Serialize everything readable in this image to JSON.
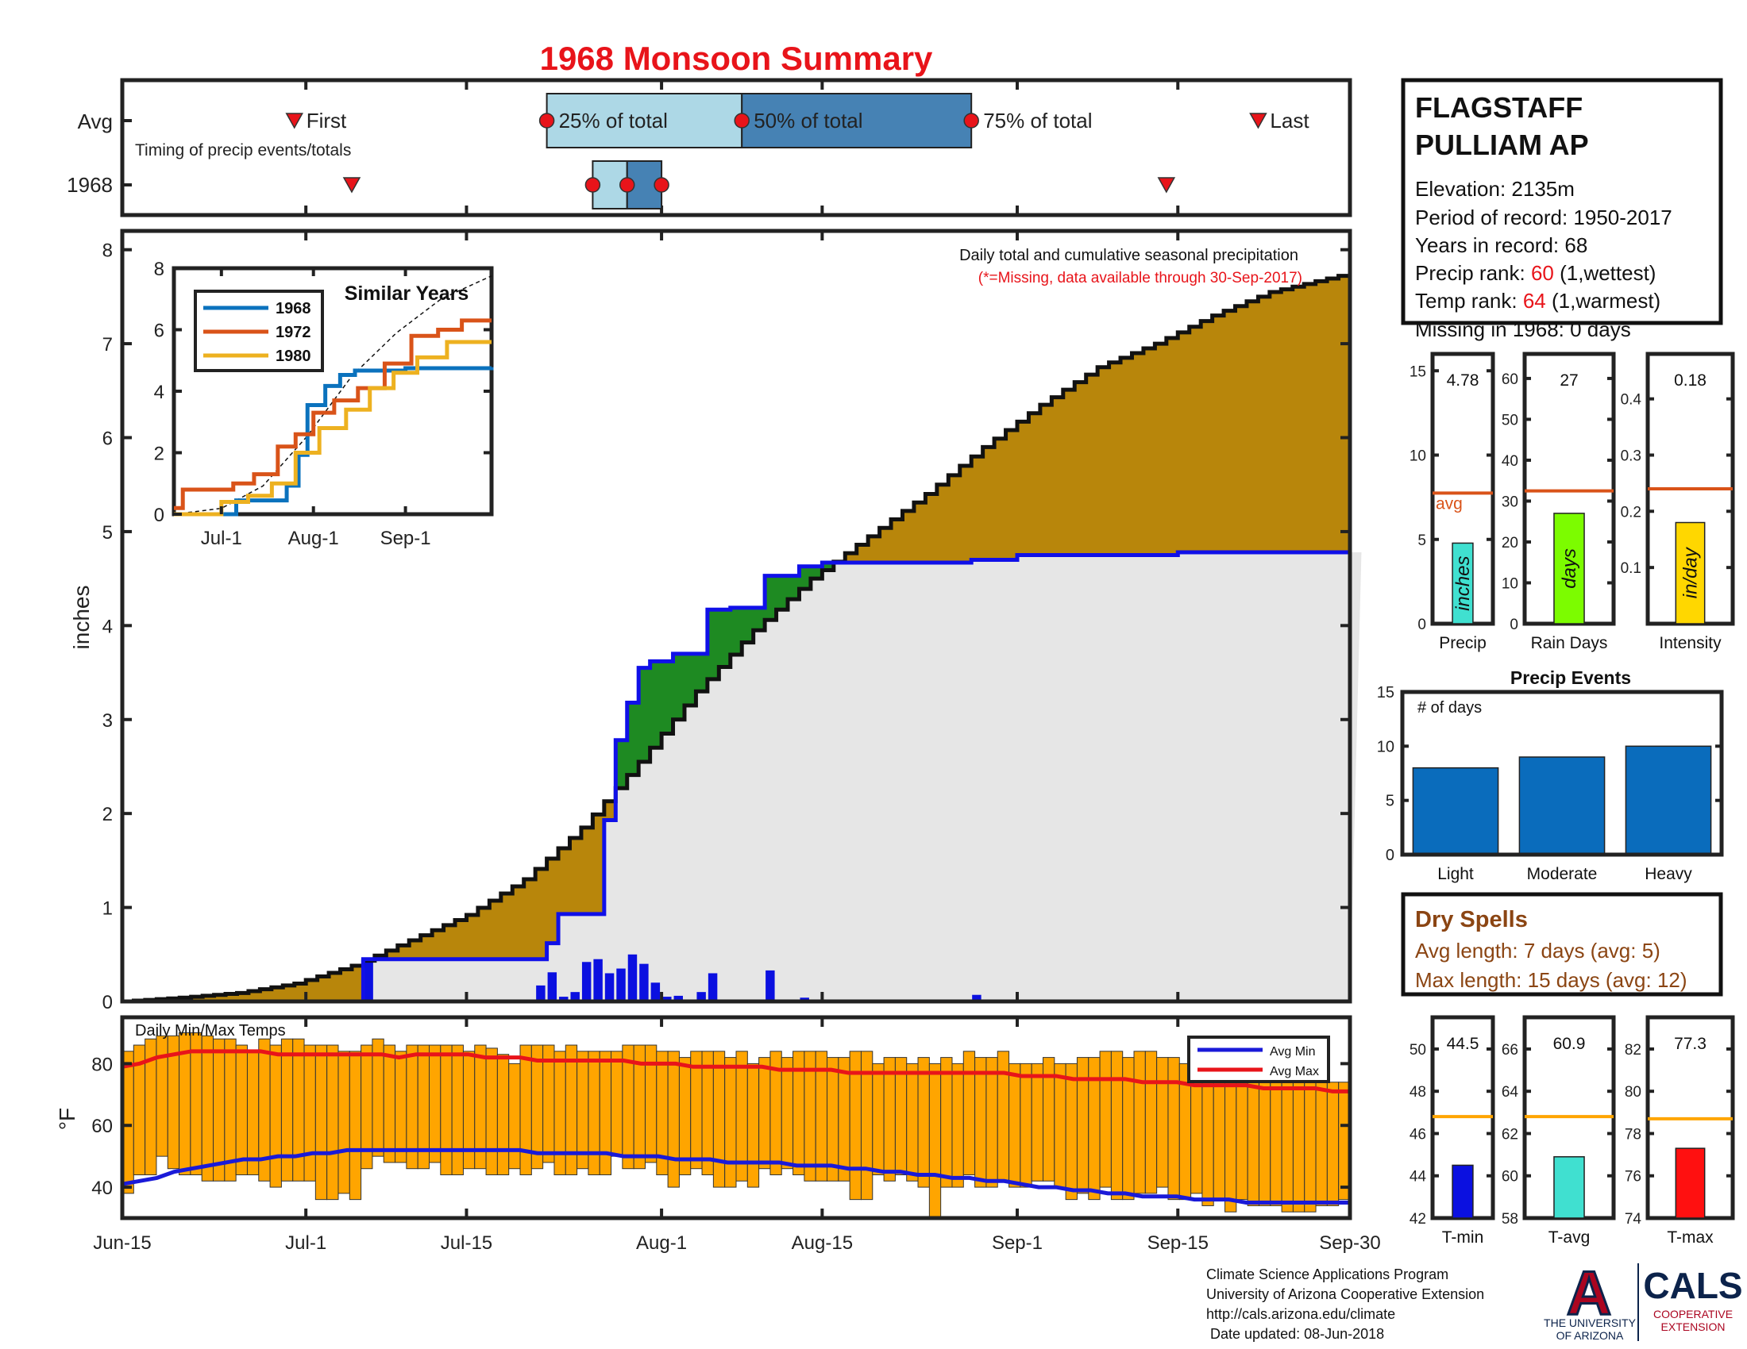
{
  "title": "1968 Monsoon Summary",
  "station": {
    "name_line1": "FLAGSTAFF",
    "name_line2": "PULLIAM AP",
    "elevation": "Elevation: 2135m",
    "period": "Period of record: 1950-2017",
    "years": "Years in record: 68",
    "precip_rank_prefix": "Precip rank: ",
    "precip_rank_value": "60",
    "precip_rank_suffix": " (1,wettest)",
    "temp_rank_prefix": "Temp rank: ",
    "temp_rank_value": "64",
    "temp_rank_suffix": " (1,warmest)",
    "missing": "Missing in 1968: 0 days"
  },
  "colors": {
    "title": "#e8141a",
    "rank_value": "#e8141a",
    "cumulative_fill": "#b8860b",
    "avg_fill": "#e6e6e6",
    "above_avg_fill": "#1e8a22",
    "daily_bar": "#0b10e0",
    "avg_line": "#1010e8",
    "temp_bar": "#ffa500",
    "max_line": "#e8141a",
    "min_line": "#1a1ad8",
    "dry_spell": "#8b4513",
    "events_bar": "#0a6cbc"
  },
  "timing": {
    "row_labels": [
      "Avg",
      "1968"
    ],
    "caption": "Timing of precip events/totals",
    "labels": {
      "first": "First",
      "p25": "25% of total",
      "p50": "50% of total",
      "p75": "75% of total",
      "last": "Last"
    },
    "avg": {
      "first": "2018-06-30",
      "p25": "2018-07-22",
      "p50": "2018-08-08",
      "p75": "2018-08-28",
      "last": "2018-09-22"
    },
    "year": {
      "first": "2018-07-05",
      "p25": "2018-07-26",
      "p50": "2018-07-29",
      "p75": "2018-08-01",
      "last": "2018-09-14"
    }
  },
  "chart_data": [
    {
      "type": "area",
      "name": "main-precipitation",
      "annotation": "Daily total and cumulative seasonal precipitation",
      "missing_note": "(*=Missing, data available through 30-Sep-2017)",
      "ylabel": "inches",
      "ylim": [
        0,
        8.2
      ],
      "yticks": [
        0,
        1,
        2,
        3,
        4,
        5,
        6,
        7,
        8
      ],
      "x_ticks": [
        {
          "date": "2018-06-15",
          "label": "Jun-15"
        },
        {
          "date": "2018-07-01",
          "label": "Jul-1"
        },
        {
          "date": "2018-07-15",
          "label": "Jul-15"
        },
        {
          "date": "2018-08-01",
          "label": "Aug-1"
        },
        {
          "date": "2018-08-15",
          "label": "Aug-15"
        },
        {
          "date": "2018-09-01",
          "label": "Sep-1"
        },
        {
          "date": "2018-09-15",
          "label": "Sep-15"
        },
        {
          "date": "2018-09-30",
          "label": "Sep-30"
        }
      ],
      "x_range": [
        "2018-06-15",
        "2018-09-30"
      ],
      "avg_cumulative": {
        "dates": [
          "2018-06-15",
          "2018-06-20",
          "2018-06-25",
          "2018-06-30",
          "2018-07-05",
          "2018-07-10",
          "2018-07-15",
          "2018-07-20",
          "2018-07-25",
          "2018-07-30",
          "2018-08-04",
          "2018-08-09",
          "2018-08-14",
          "2018-08-19",
          "2018-08-24",
          "2018-08-29",
          "2018-09-03",
          "2018-09-08",
          "2018-09-13",
          "2018-09-18",
          "2018-09-23",
          "2018-09-30"
        ],
        "values": [
          0.0,
          0.04,
          0.09,
          0.19,
          0.38,
          0.65,
          0.92,
          1.3,
          1.85,
          2.55,
          3.3,
          3.95,
          4.5,
          4.95,
          5.4,
          5.9,
          6.35,
          6.75,
          7.0,
          7.3,
          7.55,
          7.75
        ]
      },
      "year_cumulative": {
        "dates": [
          "2018-06-15",
          "2018-07-05",
          "2018-07-06",
          "2018-07-21",
          "2018-07-22",
          "2018-07-23",
          "2018-07-26",
          "2018-07-27",
          "2018-07-28",
          "2018-07-29",
          "2018-07-30",
          "2018-07-31",
          "2018-08-02",
          "2018-08-05",
          "2018-08-07",
          "2018-08-10",
          "2018-08-13",
          "2018-08-15",
          "2018-08-28",
          "2018-09-01",
          "2018-09-15",
          "2018-09-30"
        ],
        "values": [
          0.0,
          0.0,
          0.45,
          0.45,
          0.62,
          0.93,
          0.93,
          1.93,
          2.78,
          3.18,
          3.55,
          3.62,
          3.7,
          4.17,
          4.19,
          4.53,
          4.63,
          4.67,
          4.7,
          4.75,
          4.78,
          4.78
        ]
      },
      "daily_bars": {
        "dates": [
          "2018-07-06",
          "2018-07-21",
          "2018-07-22",
          "2018-07-23",
          "2018-07-24",
          "2018-07-25",
          "2018-07-26",
          "2018-07-27",
          "2018-07-28",
          "2018-07-29",
          "2018-07-30",
          "2018-07-31",
          "2018-08-01",
          "2018-08-02",
          "2018-08-03",
          "2018-08-04",
          "2018-08-05",
          "2018-08-07",
          "2018-08-10",
          "2018-08-13",
          "2018-08-28"
        ],
        "values": [
          0.45,
          0.17,
          0.31,
          0.05,
          0.1,
          0.42,
          0.45,
          0.3,
          0.35,
          0.5,
          0.4,
          0.2,
          0.05,
          0.06,
          0.02,
          0.1,
          0.3,
          0.02,
          0.33,
          0.04,
          0.07
        ]
      }
    },
    {
      "type": "line",
      "name": "similar-years",
      "title": "Similar Years",
      "ylim": [
        0,
        8
      ],
      "yticks": [
        0,
        2,
        4,
        6,
        8
      ],
      "x_ticks": [
        {
          "date": "2018-07-01",
          "label": "Jul-1"
        },
        {
          "date": "2018-08-01",
          "label": "Aug-1"
        },
        {
          "date": "2018-09-01",
          "label": "Sep-1"
        }
      ],
      "x_range": [
        "2018-06-15",
        "2018-09-30"
      ],
      "series": [
        {
          "name": "1968",
          "color": "#0b72bd",
          "dates": [
            "2018-06-15",
            "2018-07-05",
            "2018-07-06",
            "2018-07-21",
            "2018-07-23",
            "2018-07-27",
            "2018-07-30",
            "2018-08-05",
            "2018-08-10",
            "2018-08-15",
            "2018-09-01",
            "2018-09-30"
          ],
          "values": [
            0.0,
            0.0,
            0.45,
            0.45,
            0.93,
            1.93,
            3.55,
            4.17,
            4.53,
            4.67,
            4.75,
            4.78
          ]
        },
        {
          "name": "1972",
          "color": "#d95319",
          "dates": [
            "2018-06-15",
            "2018-06-18",
            "2018-07-05",
            "2018-07-12",
            "2018-07-20",
            "2018-07-26",
            "2018-08-01",
            "2018-08-08",
            "2018-08-16",
            "2018-08-25",
            "2018-09-03",
            "2018-09-12",
            "2018-09-20",
            "2018-09-30"
          ],
          "values": [
            0.2,
            0.8,
            1.0,
            1.3,
            2.2,
            2.6,
            3.3,
            3.7,
            4.1,
            4.9,
            5.8,
            6.0,
            6.3,
            6.3
          ]
        },
        {
          "name": "1980",
          "color": "#edb120",
          "dates": [
            "2018-06-15",
            "2018-07-01",
            "2018-07-10",
            "2018-07-18",
            "2018-07-26",
            "2018-08-03",
            "2018-08-12",
            "2018-08-20",
            "2018-08-28",
            "2018-09-05",
            "2018-09-15",
            "2018-09-30"
          ],
          "values": [
            0.0,
            0.4,
            0.6,
            1.0,
            2.0,
            2.8,
            3.4,
            4.1,
            4.6,
            5.1,
            5.6,
            5.6
          ]
        }
      ],
      "avg_line": {
        "dates": [
          "2018-06-15",
          "2018-07-01",
          "2018-07-15",
          "2018-07-30",
          "2018-08-14",
          "2018-08-29",
          "2018-09-13",
          "2018-09-30"
        ],
        "values": [
          0.0,
          0.19,
          0.92,
          2.55,
          4.5,
          5.9,
          7.0,
          7.75
        ]
      }
    },
    {
      "type": "bar",
      "name": "seasonal-stats",
      "panels": [
        {
          "label": "Precip",
          "bar_text": "inches",
          "value": 4.78,
          "value_label": "4.78",
          "avg": 7.75,
          "ylim": [
            0,
            16
          ],
          "yticks": [
            0,
            5,
            10,
            15
          ],
          "color": "#40e0d0"
        },
        {
          "label": "Rain Days",
          "bar_text": "days",
          "value": 27,
          "value_label": "27",
          "avg": 32.5,
          "ylim": [
            0,
            66
          ],
          "yticks": [
            0,
            10,
            20,
            30,
            40,
            50,
            60
          ],
          "color": "#7cfc00"
        },
        {
          "label": "Intensity",
          "bar_text": "in/day",
          "value": 0.18,
          "value_label": "0.18",
          "avg": 0.24,
          "ylim": [
            0,
            0.48
          ],
          "yticks": [
            0.1,
            0.2,
            0.3,
            0.4
          ],
          "color": "#ffd700"
        }
      ],
      "avg_label": "avg"
    },
    {
      "type": "bar",
      "name": "precip-events",
      "title": "Precip Events",
      "ylabel": "# of days",
      "categories": [
        "Light",
        "Moderate",
        "Heavy"
      ],
      "values": [
        8,
        9,
        10
      ],
      "ylim": [
        0,
        15
      ],
      "yticks": [
        0,
        5,
        10,
        15
      ]
    },
    {
      "type": "bar",
      "name": "daily-temps",
      "title": "Daily Min/Max Temps",
      "ylabel": "°F",
      "ylim": [
        30,
        95
      ],
      "yticks": [
        40,
        60,
        80
      ],
      "x_range": [
        "2018-06-15",
        "2018-09-30"
      ],
      "legend": [
        "Avg Min",
        "Avg Max"
      ],
      "legend_position": "top-right",
      "tmax": [
        84,
        86,
        88,
        89,
        89,
        90,
        90,
        89,
        88,
        88,
        86,
        84,
        88,
        86,
        88,
        88,
        86,
        86,
        86,
        84,
        84,
        86,
        88,
        86,
        84,
        86,
        86,
        86,
        86,
        86,
        84,
        86,
        85,
        83,
        80,
        86,
        86,
        86,
        84,
        86,
        84,
        84,
        84,
        84,
        86,
        86,
        86,
        84,
        84,
        82,
        84,
        84,
        84,
        82,
        84,
        80,
        82,
        84,
        82,
        84,
        84,
        84,
        82,
        82,
        84,
        84,
        80,
        82,
        82,
        80,
        82,
        80,
        82,
        80,
        84,
        82,
        82,
        84,
        80,
        80,
        80,
        82,
        80,
        80,
        82,
        82,
        84,
        84,
        82,
        84,
        84,
        82,
        82,
        80,
        80,
        76,
        78,
        76,
        78,
        76,
        78,
        76,
        74,
        74,
        76,
        74,
        74,
        74
      ],
      "tmin": [
        38,
        44,
        44,
        50,
        46,
        44,
        44,
        42,
        42,
        42,
        44,
        44,
        42,
        40,
        42,
        42,
        42,
        36,
        36,
        38,
        36,
        46,
        50,
        48,
        48,
        46,
        46,
        48,
        44,
        44,
        46,
        46,
        44,
        44,
        46,
        44,
        46,
        48,
        44,
        44,
        46,
        44,
        44,
        50,
        46,
        46,
        48,
        44,
        40,
        44,
        46,
        44,
        40,
        40,
        42,
        40,
        46,
        44,
        46,
        44,
        42,
        42,
        42,
        42,
        36,
        36,
        44,
        42,
        44,
        42,
        40,
        30,
        40,
        40,
        44,
        40,
        40,
        42,
        40,
        40,
        42,
        42,
        40,
        36,
        38,
        36,
        40,
        36,
        36,
        38,
        38,
        40,
        36,
        36,
        38,
        34,
        36,
        32,
        36,
        34,
        34,
        34,
        32,
        32,
        32,
        34,
        34,
        36
      ],
      "avg_max": [
        79,
        80,
        82,
        83,
        84,
        84,
        84,
        84,
        84,
        83,
        83,
        83,
        83,
        83,
        83,
        83,
        82,
        83,
        83,
        83,
        83,
        82,
        82,
        82,
        81,
        81,
        81,
        81,
        81,
        81,
        80,
        80,
        80,
        79,
        79,
        79,
        79,
        79,
        78,
        78,
        78,
        78,
        77,
        77,
        77,
        77,
        77,
        77,
        77,
        77,
        77,
        77,
        76,
        76,
        76,
        75,
        75,
        75,
        75,
        74,
        74,
        74,
        73,
        73,
        73,
        73,
        72,
        72,
        72,
        72,
        71,
        71
      ],
      "avg_min": [
        41,
        42,
        43,
        45,
        46,
        47,
        48,
        49,
        49,
        50,
        50,
        51,
        51,
        52,
        52,
        52,
        52,
        52,
        52,
        52,
        52,
        52,
        52,
        52,
        51,
        51,
        51,
        51,
        51,
        50,
        50,
        50,
        49,
        49,
        49,
        48,
        48,
        48,
        48,
        47,
        47,
        47,
        46,
        46,
        45,
        45,
        44,
        44,
        43,
        43,
        42,
        42,
        41,
        40,
        40,
        39,
        39,
        38,
        38,
        37,
        37,
        37,
        36,
        36,
        36,
        35,
        35,
        35,
        35,
        35,
        35,
        35
      ]
    },
    {
      "type": "bar",
      "name": "temp-summary",
      "panels": [
        {
          "label": "T-min",
          "value": 44.5,
          "value_label": "44.5",
          "avg": 46.8,
          "ylim": [
            42,
            51.5
          ],
          "yticks": [
            42,
            44,
            46,
            48,
            50
          ],
          "color": "#0b10e0"
        },
        {
          "label": "T-avg",
          "value": 60.9,
          "value_label": "60.9",
          "avg": 62.8,
          "ylim": [
            58,
            67.5
          ],
          "yticks": [
            58,
            60,
            62,
            64,
            66
          ],
          "color": "#40e0d0"
        },
        {
          "label": "T-max",
          "value": 77.3,
          "value_label": "77.3",
          "avg": 78.7,
          "ylim": [
            74,
            83.5
          ],
          "yticks": [
            74,
            76,
            78,
            80,
            82
          ],
          "color": "#ff1010"
        }
      ]
    }
  ],
  "dry_spells": {
    "title": "Dry Spells",
    "avg_length": "Avg length: 7 days (avg: 5)",
    "max_length": "Max length: 15 days (avg: 12)"
  },
  "footer": {
    "line1": "Climate Science Applications Program",
    "line2": "University of Arizona Cooperative Extension",
    "line3": "http://cals.arizona.edu/climate",
    "line4": "Date updated: 08-Jun-2018"
  },
  "logos": {
    "ua_letter": "A",
    "ua_line1": "THE UNIVERSITY",
    "ua_line2": "OF ARIZONA",
    "cals": "CALS",
    "cals_line1": "COOPERATIVE",
    "cals_line2": "EXTENSION"
  }
}
